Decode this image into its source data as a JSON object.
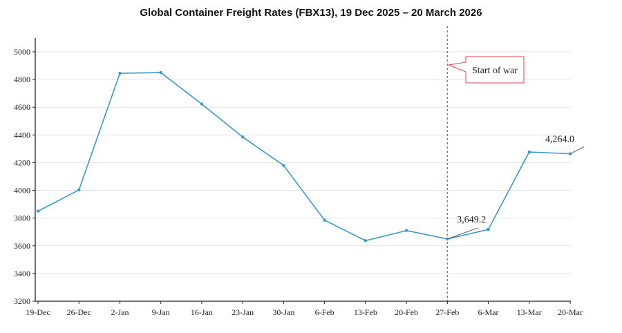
{
  "chart_data": {
    "type": "line",
    "title": "Global Container Freight Rates (FBX13), 19 Dec 2025 – 20 March 2026",
    "xlabel": "",
    "ylabel": "",
    "categories": [
      "19-Dec",
      "26-Dec",
      "2-Jan",
      "9-Jan",
      "16-Jan",
      "23-Jan",
      "30-Jan",
      "6-Feb",
      "13-Feb",
      "20-Feb",
      "27-Feb",
      "6-Mar",
      "13-Mar",
      "20-Mar"
    ],
    "values": [
      3850,
      4003,
      4845,
      4850,
      4623,
      4385,
      4180,
      3785,
      3637,
      3710,
      3649.2,
      3718,
      4277,
      4264.0
    ],
    "ylim": [
      3200,
      5000
    ],
    "yticks": [
      3200,
      3400,
      3600,
      3800,
      4000,
      4200,
      4400,
      4600,
      4800,
      5000
    ],
    "grid": "horizontal",
    "colors": {
      "line": "#3a97c9",
      "marker": "#3a97c9",
      "grid": "#e3e3e3",
      "event_line": "#e0474c",
      "axis": "#222222"
    },
    "event_marker": {
      "category": "27-Feb",
      "label": "Start of war"
    },
    "point_labels": [
      {
        "category": "27-Feb",
        "text": "3,649.2"
      },
      {
        "category": "20-Mar",
        "text": "4,264.0"
      }
    ]
  }
}
